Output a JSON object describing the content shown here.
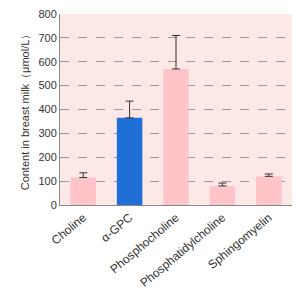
{
  "chart_data": {
    "type": "bar",
    "y_label": "Content in breast milk（μmol/L）",
    "categories": [
      "Choline",
      "α-GPC",
      "Phosphocholine",
      "Phosphatidylcholine",
      "Sphingomyelin"
    ],
    "values": [
      115,
      365,
      570,
      80,
      120
    ],
    "errors": [
      20,
      70,
      140,
      12,
      10
    ],
    "colors": [
      "#ffc4c8",
      "#1f6fd6",
      "#ffc4c8",
      "#ffc4c8",
      "#ffc4c8"
    ],
    "ylim": [
      0,
      800
    ],
    "yticks": [
      0,
      100,
      200,
      300,
      400,
      500,
      600,
      700,
      800
    ],
    "grid": true
  }
}
